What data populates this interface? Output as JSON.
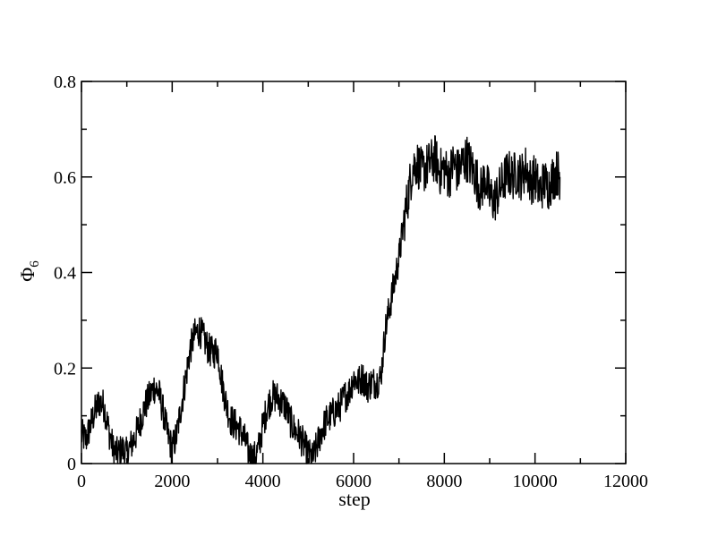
{
  "chart_data": {
    "type": "line",
    "title": "",
    "xlabel": "step",
    "ylabel_main": "Φ",
    "ylabel_sub": "6",
    "xlim": [
      0,
      12000
    ],
    "ylim": [
      0,
      0.8
    ],
    "x_ticks": [
      0,
      2000,
      4000,
      6000,
      8000,
      10000,
      12000
    ],
    "x_tick_labels": [
      "0",
      "2000",
      "4000",
      "6000",
      "8000",
      "10000",
      "12000"
    ],
    "y_ticks": [
      0,
      0.2,
      0.4,
      0.6,
      0.8
    ],
    "y_tick_labels": [
      "0",
      "0.2",
      "0.4",
      "0.6",
      "0.8"
    ],
    "grid": false,
    "legend": "none",
    "line_color": "#000000",
    "series": [
      {
        "x": [
          0,
          100,
          200,
          300,
          400,
          500,
          600,
          700,
          800,
          900,
          1000,
          1100,
          1200,
          1300,
          1400,
          1500,
          1600,
          1700,
          1800,
          1900,
          2000,
          2100,
          2200,
          2300,
          2400,
          2500,
          2600,
          2700,
          2800,
          2900,
          3000,
          3100,
          3200,
          3300,
          3400,
          3500,
          3600,
          3700,
          3800,
          3900,
          4000,
          4100,
          4200,
          4300,
          4400,
          4500,
          4600,
          4700,
          4800,
          4900,
          5000,
          5100,
          5200,
          5300,
          5400,
          5500,
          5600,
          5700,
          5800,
          5900,
          6000,
          6100,
          6200,
          6300,
          6400,
          6500,
          6600,
          6700,
          6800,
          6900,
          7000,
          7100,
          7200,
          7300,
          7400,
          7500,
          7600,
          7700,
          7800,
          7900,
          8000,
          8100,
          8200,
          8300,
          8400,
          8500,
          8600,
          8700,
          8800,
          8900,
          9000,
          9100,
          9200,
          9300,
          9400,
          9500,
          9600,
          9700,
          9800,
          9900,
          10000,
          10100,
          10200,
          10300,
          10400,
          10500,
          10550
        ],
        "values": [
          0.06,
          0.05,
          0.08,
          0.11,
          0.13,
          0.12,
          0.07,
          0.03,
          0.02,
          0.03,
          0.02,
          0.04,
          0.06,
          0.09,
          0.12,
          0.14,
          0.16,
          0.15,
          0.11,
          0.06,
          0.03,
          0.06,
          0.12,
          0.18,
          0.24,
          0.27,
          0.28,
          0.26,
          0.24,
          0.23,
          0.24,
          0.17,
          0.12,
          0.09,
          0.08,
          0.07,
          0.05,
          0.02,
          0.01,
          0.03,
          0.08,
          0.12,
          0.14,
          0.14,
          0.13,
          0.12,
          0.09,
          0.07,
          0.06,
          0.04,
          0.02,
          0.01,
          0.04,
          0.07,
          0.09,
          0.1,
          0.11,
          0.12,
          0.14,
          0.15,
          0.18,
          0.17,
          0.18,
          0.16,
          0.17,
          0.17,
          0.18,
          0.28,
          0.33,
          0.38,
          0.43,
          0.5,
          0.56,
          0.62,
          0.63,
          0.61,
          0.62,
          0.63,
          0.64,
          0.61,
          0.62,
          0.6,
          0.63,
          0.61,
          0.63,
          0.64,
          0.62,
          0.6,
          0.57,
          0.6,
          0.56,
          0.55,
          0.57,
          0.59,
          0.61,
          0.6,
          0.61,
          0.6,
          0.62,
          0.59,
          0.6,
          0.57,
          0.59,
          0.58,
          0.6,
          0.61,
          0.6
        ]
      }
    ]
  }
}
